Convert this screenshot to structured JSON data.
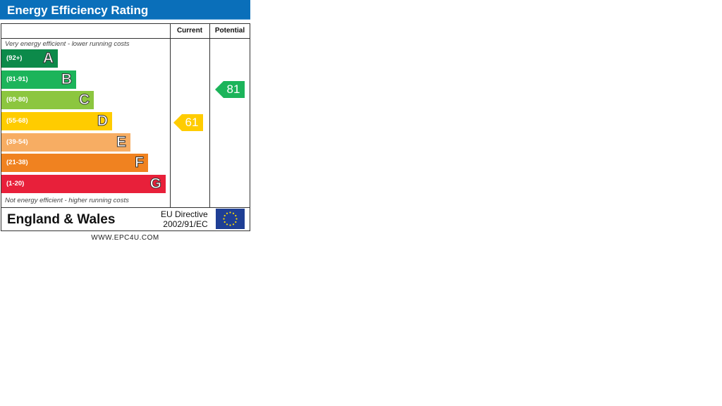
{
  "title": "Energy Efficiency Rating",
  "columns": {
    "current": "Current",
    "potential": "Potential"
  },
  "top_note": "Very energy efficient - lower running costs",
  "bottom_note": "Not energy efficient - higher running costs",
  "region": "England & Wales",
  "directive": {
    "line1": "EU Directive",
    "line2": "2002/91/EC"
  },
  "website": "WWW.EPC4U.COM",
  "chart_data": {
    "type": "bar",
    "bands": [
      {
        "letter": "A",
        "range": "(92+)",
        "color": "#0c8a4a"
      },
      {
        "letter": "B",
        "range": "(81-91)",
        "color": "#1cb45a"
      },
      {
        "letter": "C",
        "range": "(69-80)",
        "color": "#8cc63f"
      },
      {
        "letter": "D",
        "range": "(55-68)",
        "color": "#ffcc00"
      },
      {
        "letter": "E",
        "range": "(39-54)",
        "color": "#f7ad63"
      },
      {
        "letter": "F",
        "range": "(21-38)",
        "color": "#f08220"
      },
      {
        "letter": "G",
        "range": "(1-20)",
        "color": "#e8203a"
      }
    ],
    "current": {
      "value": "61",
      "band": "D",
      "color": "#ffcc00"
    },
    "potential": {
      "value": "81",
      "band": "B",
      "color": "#1cb45a"
    }
  }
}
